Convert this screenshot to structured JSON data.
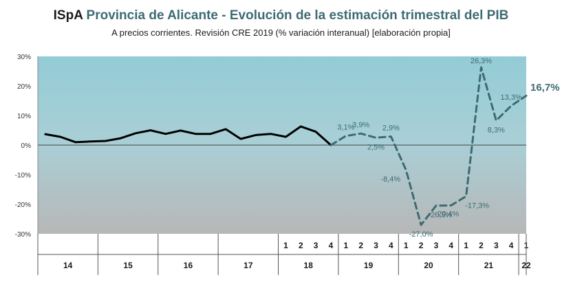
{
  "header": {
    "prefix": "ISpA",
    "title": "Provincia de Alicante - Evolución de la estimación trimestral del PIB",
    "subtitle": "A precios corrientes. Revisión CRE 2019 (% variación interanual) [elaboración propia]"
  },
  "colors": {
    "historical_line": "#000000",
    "estimate_line": "#3d6b72",
    "plot_top": "#93ccd6",
    "plot_bottom": "#b7b7b7"
  },
  "chart_data": {
    "type": "line",
    "ylim": [
      -30,
      30
    ],
    "yticks": [
      "30%",
      "20%",
      "10%",
      "0%",
      "-10%",
      "-20%",
      "-30%"
    ],
    "ytick_values": [
      30,
      20,
      10,
      0,
      -10,
      -20,
      -30
    ],
    "years": [
      {
        "label": "14",
        "quarters": [
          "",
          "",
          "",
          ""
        ]
      },
      {
        "label": "15",
        "quarters": [
          "",
          "",
          "",
          ""
        ]
      },
      {
        "label": "16",
        "quarters": [
          "",
          "",
          "",
          ""
        ]
      },
      {
        "label": "17",
        "quarters": [
          "",
          "",
          "",
          ""
        ]
      },
      {
        "label": "18",
        "quarters": [
          "1",
          "2",
          "3",
          "4"
        ]
      },
      {
        "label": "19",
        "quarters": [
          "1",
          "2",
          "3",
          "4"
        ]
      },
      {
        "label": "20",
        "quarters": [
          "1",
          "2",
          "3",
          "4"
        ]
      },
      {
        "label": "21",
        "quarters": [
          "1",
          "2",
          "3",
          "4"
        ]
      },
      {
        "label": "22",
        "quarters": [
          "1"
        ]
      }
    ],
    "series": [
      {
        "style": "solid",
        "values": [
          3.7,
          2.8,
          1.0,
          1.2,
          1.4,
          2.3,
          4.0,
          5.0,
          3.8,
          4.9,
          3.8,
          3.8,
          5.4,
          2.1,
          3.4,
          3.8,
          2.8,
          6.3,
          4.5,
          0.0
        ],
        "start_index": 0
      },
      {
        "style": "dashed",
        "values": [
          0.0,
          3.1,
          3.9,
          2.5,
          2.9,
          -8.4,
          -27.0,
          -20.5,
          -20.4,
          -17.3,
          26.3,
          8.3,
          13.3,
          16.7
        ],
        "start_index": 19
      }
    ],
    "annotations": [
      {
        "text": "3,1%",
        "index": 20,
        "value": 3.1,
        "pos": "above",
        "big": false
      },
      {
        "text": "3,9%",
        "index": 21,
        "value": 3.9,
        "pos": "above",
        "big": false
      },
      {
        "text": "2,5%",
        "index": 22,
        "value": 2.5,
        "pos": "below",
        "big": false
      },
      {
        "text": "2,9%",
        "index": 23,
        "value": 2.9,
        "pos": "above",
        "big": false
      },
      {
        "text": "-8,4%",
        "index": 24,
        "value": -8.4,
        "pos": "left",
        "big": false
      },
      {
        "text": "-27,0%",
        "index": 25,
        "value": -27.0,
        "pos": "below",
        "big": false
      },
      {
        "text": "-20,5%",
        "index": 26,
        "value": -20.5,
        "pos": "below",
        "big": false
      },
      {
        "text": "-20,4%",
        "index": 27,
        "value": -20.4,
        "pos": "below",
        "big": false
      },
      {
        "text": "-17,3%",
        "index": 28,
        "value": -17.3,
        "pos": "below",
        "big": false
      },
      {
        "text": "26,3%",
        "index": 29,
        "value": 26.3,
        "pos": "above",
        "big": false
      },
      {
        "text": "8,3%",
        "index": 30,
        "value": 8.3,
        "pos": "below",
        "big": false
      },
      {
        "text": "13,3%",
        "index": 31,
        "value": 13.3,
        "pos": "above",
        "big": false
      },
      {
        "text": "16,7%",
        "index": 32,
        "value": 16.7,
        "pos": "right",
        "big": true
      }
    ]
  }
}
